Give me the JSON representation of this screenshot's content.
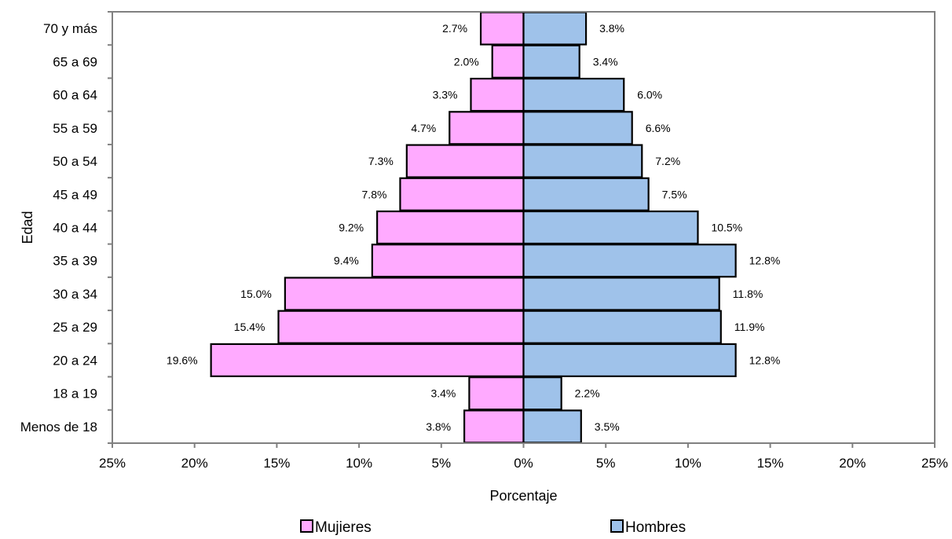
{
  "chart_data": {
    "type": "bar",
    "orientation": "horizontal",
    "layout": "population-pyramid",
    "title": "",
    "xlabel": "Porcentaje",
    "ylabel": "Edad",
    "xlim": [
      -25,
      25
    ],
    "x_ticks": [
      -25,
      -20,
      -15,
      -10,
      -5,
      0,
      5,
      10,
      15,
      20,
      25
    ],
    "x_tick_labels": [
      "25%",
      "20%",
      "15%",
      "10%",
      "5%",
      "0%",
      "5%",
      "10%",
      "15%",
      "20%",
      "25%"
    ],
    "grid": false,
    "legend_position": "bottom",
    "categories": [
      "70 y más",
      "65 a 69",
      "60 a 64",
      "55 a 59",
      "50 a 54",
      "45 a 49",
      "40 a 44",
      "35 a 39",
      "30 a 34",
      "25 a 29",
      "20 a 24",
      "18 a 19",
      "Menos de 18"
    ],
    "series": [
      {
        "name": "Mujieres",
        "side": "left",
        "color": "#ffaaff",
        "values": [
          2.7,
          2.0,
          3.3,
          4.7,
          7.3,
          7.8,
          9.2,
          9.4,
          15.0,
          15.4,
          19.6,
          3.4,
          3.8
        ],
        "bar_values": [
          2.6,
          1.9,
          3.2,
          4.5,
          7.1,
          7.5,
          8.9,
          9.2,
          14.5,
          14.9,
          19.0,
          3.3,
          3.6
        ],
        "labels": [
          "2.7%",
          "2.0%",
          "3.3%",
          "4.7%",
          "7.3%",
          "7.8%",
          "9.2%",
          "9.4%",
          "15.0%",
          "15.4%",
          "19.6%",
          "3.4%",
          "3.8%"
        ]
      },
      {
        "name": "Hombres",
        "side": "right",
        "color": "#9fc2ea",
        "values": [
          3.8,
          3.4,
          6.0,
          6.6,
          7.2,
          7.5,
          10.5,
          12.8,
          11.8,
          11.9,
          12.8,
          2.2,
          3.5
        ],
        "bar_values": [
          3.8,
          3.4,
          6.1,
          6.6,
          7.2,
          7.6,
          10.6,
          12.9,
          11.9,
          12.0,
          12.9,
          2.3,
          3.5
        ],
        "labels": [
          "3.8%",
          "3.4%",
          "6.0%",
          "6.6%",
          "7.2%",
          "7.5%",
          "10.5%",
          "12.8%",
          "11.8%",
          "11.9%",
          "12.8%",
          "2.2%",
          "3.5%"
        ]
      }
    ]
  }
}
